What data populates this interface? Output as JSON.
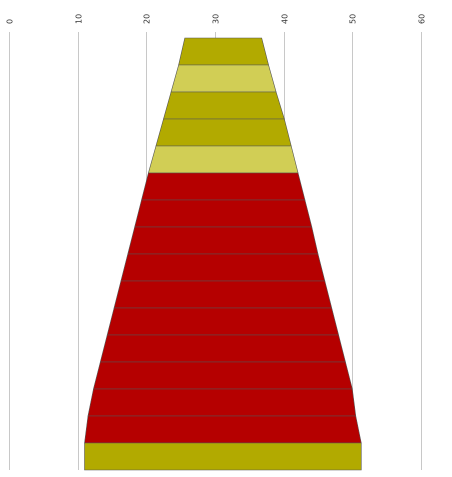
{
  "chart_data": {
    "type": "funnel",
    "title": "",
    "xlabel": "",
    "ylabel": "",
    "xlim": [
      0,
      60
    ],
    "x_ticks": [
      "0",
      "10",
      "20",
      "30",
      "40",
      "50",
      "60"
    ],
    "x_tick_values": [
      0,
      10,
      20,
      30,
      40,
      50,
      60
    ],
    "tick_label_rotation": "vertical",
    "grid": true,
    "legend": "none",
    "segments": [
      {
        "left": 25.6,
        "right": 36.8,
        "color": "#b2aa00"
      },
      {
        "left": 24.7,
        "right": 37.8,
        "color": "#d1ce55"
      },
      {
        "left": 23.6,
        "right": 38.9,
        "color": "#b2aa00"
      },
      {
        "left": 22.5,
        "right": 40.1,
        "color": "#b2aa00"
      },
      {
        "left": 21.4,
        "right": 41.1,
        "color": "#d1ce55"
      },
      {
        "left": 20.3,
        "right": 42.1,
        "color": "#b50000"
      },
      {
        "left": 19.3,
        "right": 43.1,
        "color": "#b50000"
      },
      {
        "left": 18.3,
        "right": 44.1,
        "color": "#b50000"
      },
      {
        "left": 17.3,
        "right": 45.0,
        "color": "#b50000"
      },
      {
        "left": 16.3,
        "right": 46.0,
        "color": "#b50000"
      },
      {
        "left": 15.3,
        "right": 47.0,
        "color": "#b50000"
      },
      {
        "left": 14.3,
        "right": 48.0,
        "color": "#b50000"
      },
      {
        "left": 13.3,
        "right": 49.0,
        "color": "#b50000"
      },
      {
        "left": 12.3,
        "right": 50.0,
        "color": "#b50000"
      },
      {
        "left": 11.5,
        "right": 50.5,
        "color": "#b50000"
      },
      {
        "left": 11.0,
        "right": 51.3,
        "color": "#b2aa00"
      }
    ]
  }
}
